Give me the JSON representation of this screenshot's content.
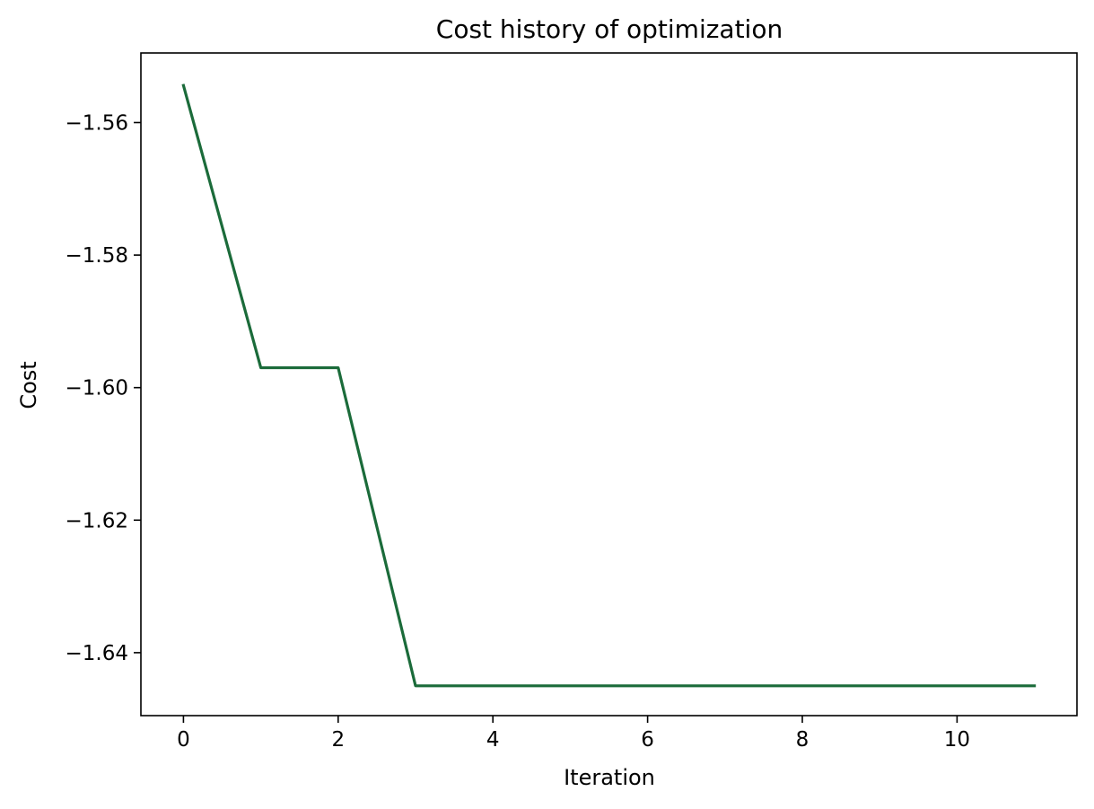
{
  "chart_data": {
    "type": "line",
    "title": "Cost history of optimization",
    "xlabel": "Iteration",
    "ylabel": "Cost",
    "xlim": [
      -0.55,
      11.55
    ],
    "ylim": [
      -1.6495,
      -1.5495
    ],
    "x_ticks": [
      0,
      2,
      4,
      6,
      8,
      10
    ],
    "x_tick_labels": [
      "0",
      "2",
      "4",
      "6",
      "8",
      "10"
    ],
    "y_ticks": [
      -1.56,
      -1.58,
      -1.6,
      -1.62,
      -1.64
    ],
    "y_tick_labels": [
      "−1.56",
      "−1.58",
      "−1.60",
      "−1.62",
      "−1.64"
    ],
    "grid": false,
    "series": [
      {
        "color": "#1b6b3a",
        "x": [
          0,
          1,
          2,
          3,
          4,
          5,
          6,
          7,
          8,
          9,
          10,
          11
        ],
        "values": [
          -1.5544,
          -1.597,
          -1.597,
          -1.645,
          -1.645,
          -1.645,
          -1.645,
          -1.645,
          -1.645,
          -1.645,
          -1.645,
          -1.645
        ]
      }
    ]
  }
}
